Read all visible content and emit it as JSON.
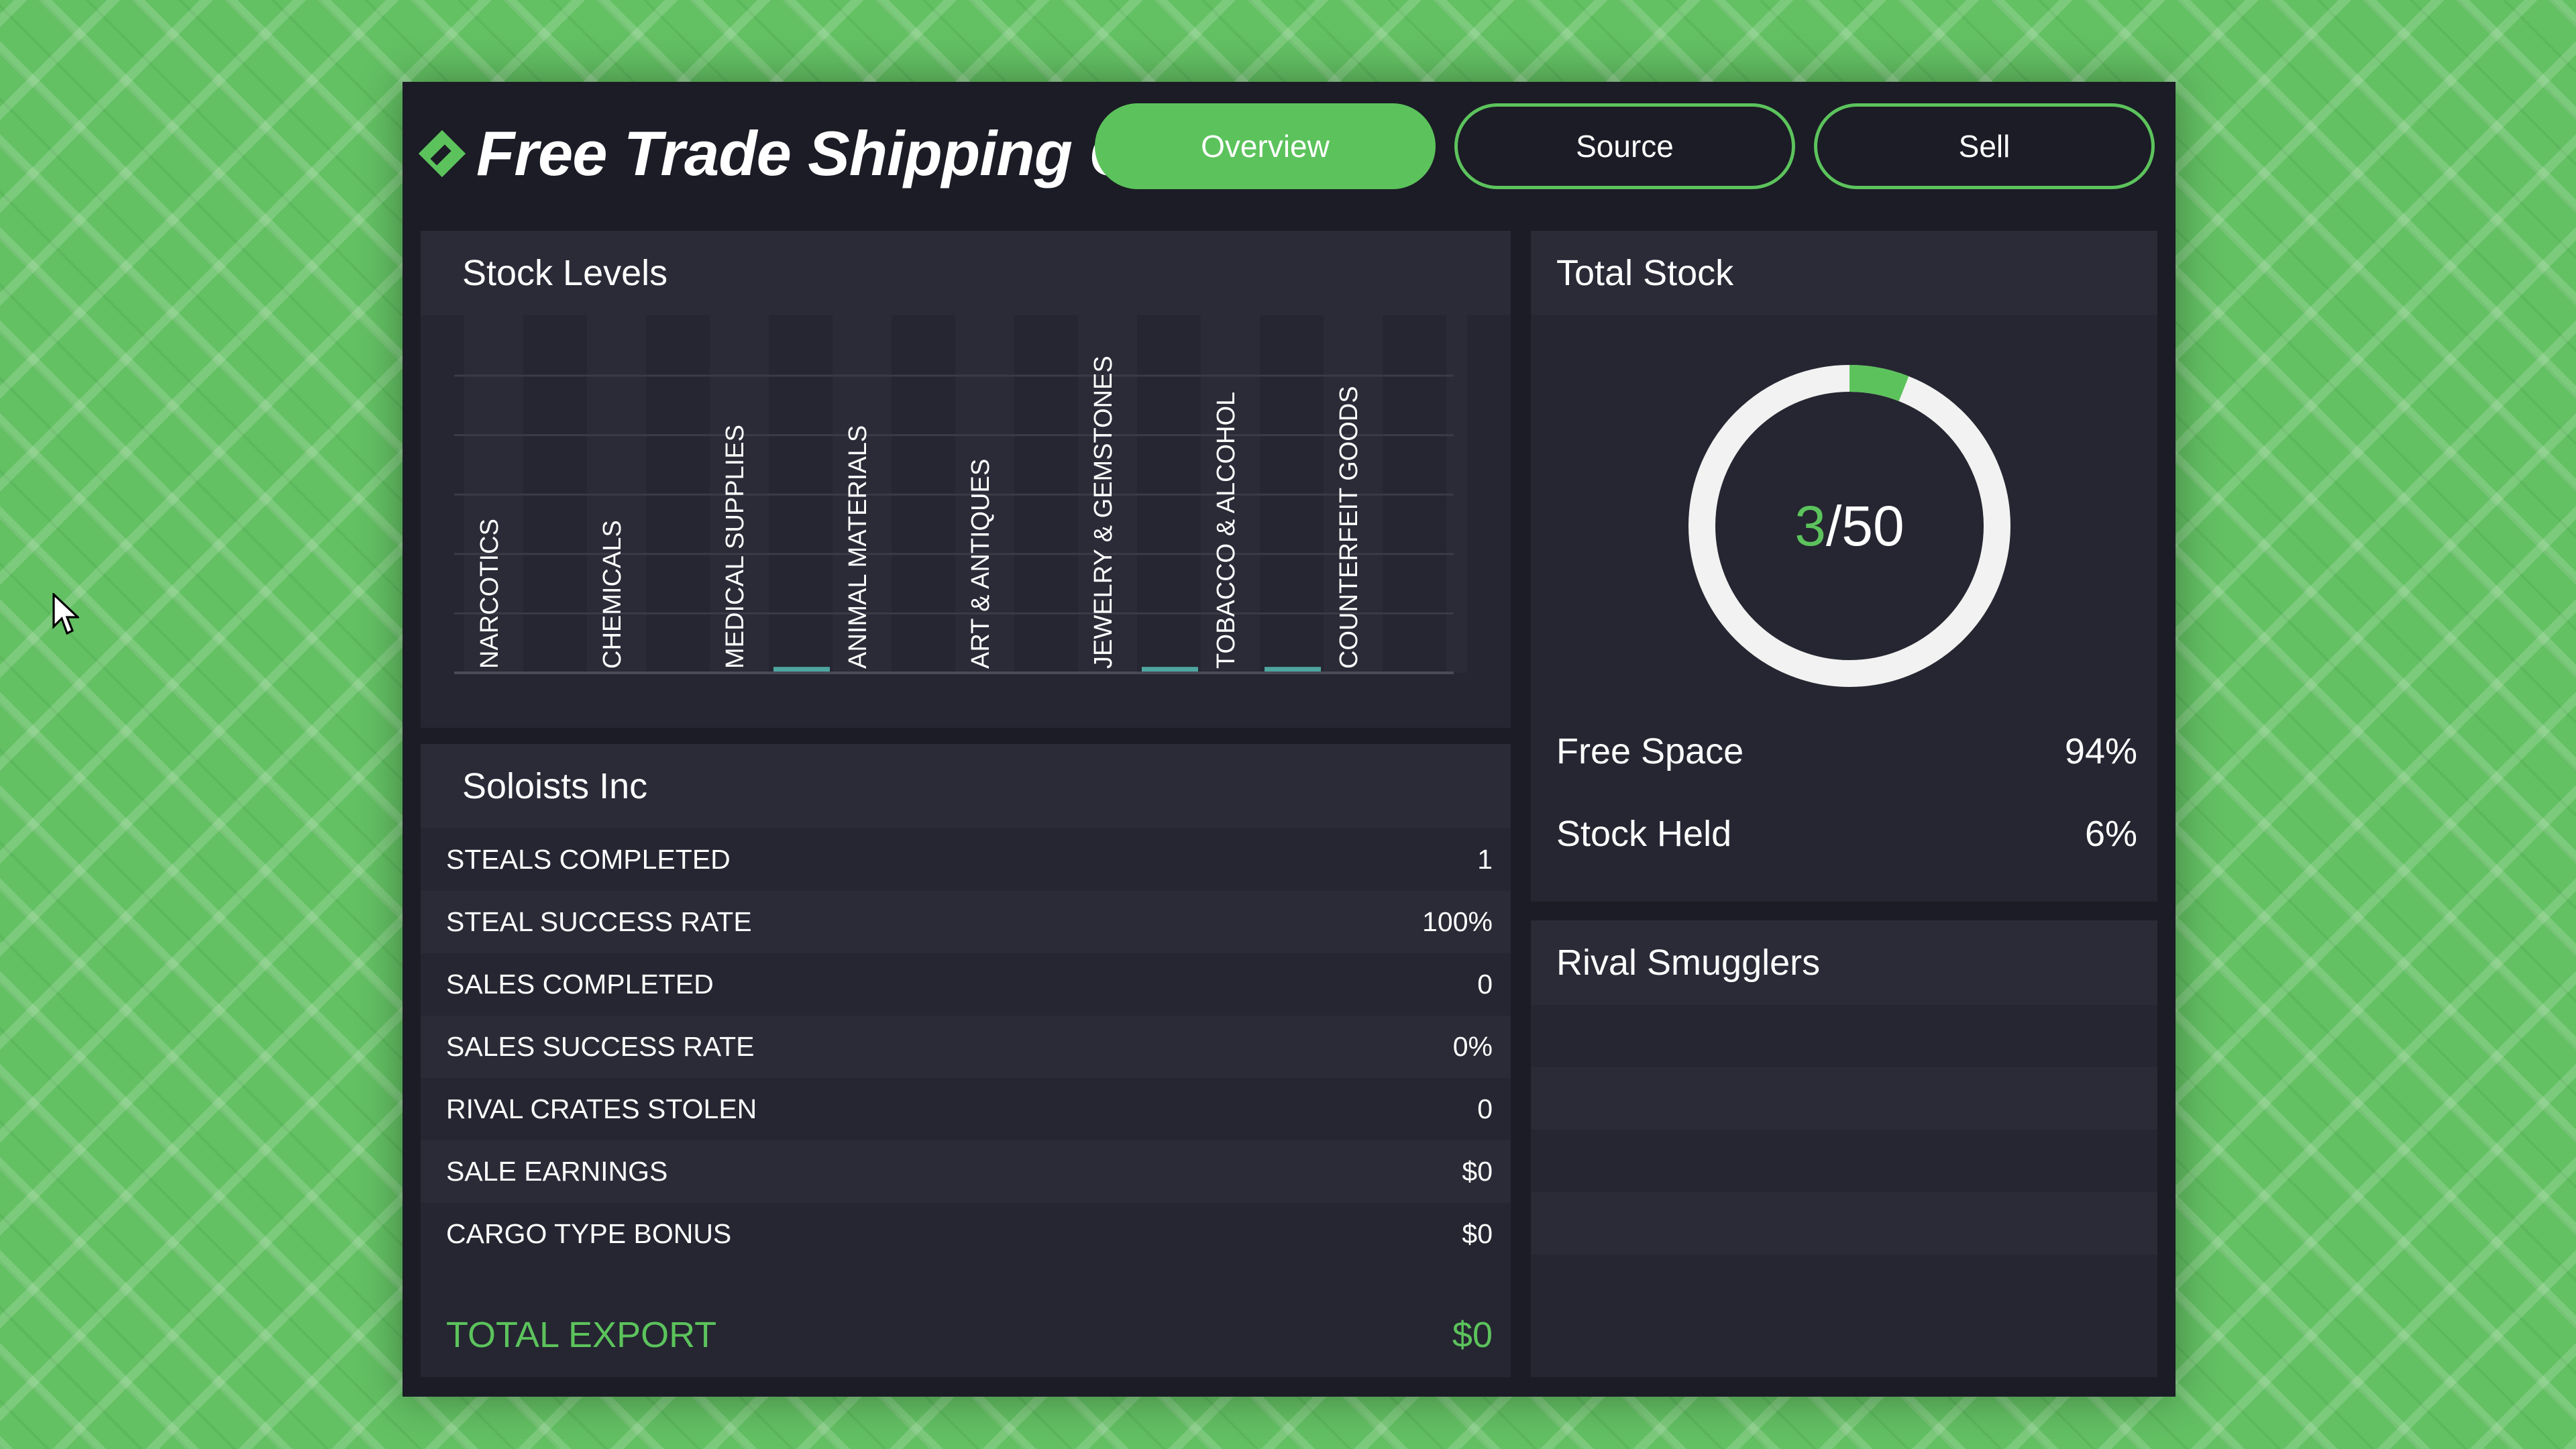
{
  "app": {
    "title": "Free Trade Shipping Co.",
    "accent_color": "#5cc35c"
  },
  "tabs": [
    {
      "label": "Overview",
      "active": true
    },
    {
      "label": "Source",
      "active": false
    },
    {
      "label": "Sell",
      "active": false
    }
  ],
  "stock_levels": {
    "title": "Stock Levels",
    "chart_data": {
      "type": "bar",
      "categories": [
        "NARCOTICS",
        "CHEMICALS",
        "MEDICAL SUPPLIES",
        "ANIMAL MATERIALS",
        "ART & ANTIQUES",
        "JEWELRY & GEMSTONES",
        "TOBACCO & ALCOHOL",
        "COUNTERFEIT GOODS"
      ],
      "values": [
        0,
        0,
        1,
        0,
        0,
        1,
        1,
        0
      ],
      "ylim": [
        0,
        50
      ],
      "grid": true,
      "bar_color": "#4ea6a0"
    }
  },
  "total_stock": {
    "title": "Total Stock",
    "current": "3",
    "separator_total": "/50",
    "fraction_filled": 0.06,
    "free_space_label": "Free Space",
    "free_space_value": "94%",
    "stock_held_label": "Stock Held",
    "stock_held_value": "6%"
  },
  "soloists": {
    "title": "Soloists Inc",
    "rows": [
      {
        "label": "STEALS COMPLETED",
        "value": "1"
      },
      {
        "label": "STEAL SUCCESS RATE",
        "value": "100%"
      },
      {
        "label": "SALES COMPLETED",
        "value": "0"
      },
      {
        "label": "SALES SUCCESS RATE",
        "value": "0%"
      },
      {
        "label": "RIVAL CRATES STOLEN",
        "value": "0"
      },
      {
        "label": "SALE EARNINGS",
        "value": "$0"
      },
      {
        "label": "CARGO TYPE BONUS",
        "value": "$0"
      }
    ],
    "total_label": "TOTAL EXPORT",
    "total_value": "$0"
  },
  "rivals": {
    "title": "Rival Smugglers"
  },
  "icons": {
    "logo": "shipping-tag-icon",
    "pointer": "mouse-cursor-icon"
  }
}
